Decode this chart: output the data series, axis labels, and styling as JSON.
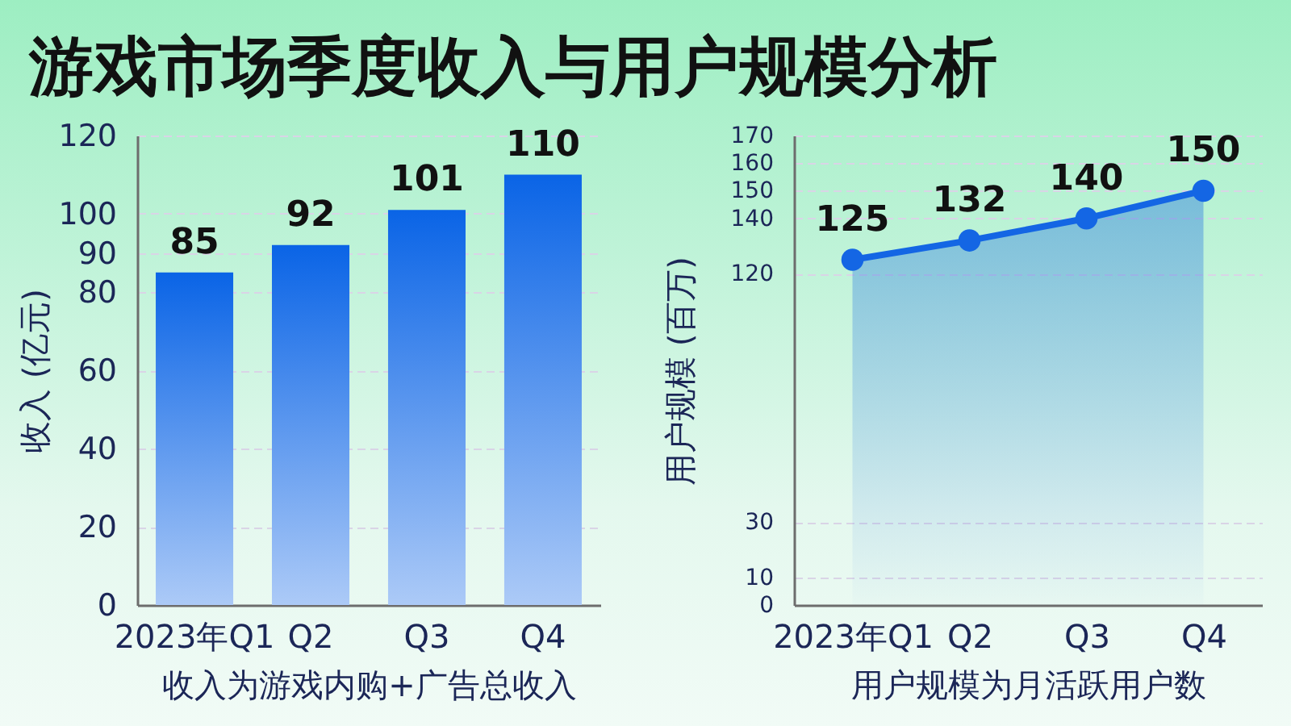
{
  "chart_data": [
    {
      "type": "bar",
      "title": "游戏市场季度收入与用户规模分析",
      "categories": [
        "2023年Q1",
        "Q2",
        "Q3",
        "Q4"
      ],
      "values": [
        85,
        92,
        101,
        110
      ],
      "color": "#0a64e6",
      "ylabel": "收入 (亿元)",
      "xlabel": "收入为游戏内购+广告总收入",
      "ylim": [
        0,
        120
      ],
      "yticks": [
        0,
        20,
        40,
        60,
        80,
        90,
        100,
        120
      ],
      "grid": "y",
      "data_labels": true
    },
    {
      "type": "area",
      "categories": [
        "2023年Q1",
        "Q2",
        "Q3",
        "Q4"
      ],
      "values": [
        125,
        132,
        140,
        150
      ],
      "color": "#1466e4",
      "marker": "circle",
      "ylabel": "用户规模 (百万)",
      "xlabel": "用户规模为月活跃用户数",
      "ylim": [
        0,
        170
      ],
      "yticks": [
        0,
        10,
        30,
        120,
        140,
        150,
        160,
        170
      ],
      "grid": "y",
      "data_labels": true
    }
  ]
}
